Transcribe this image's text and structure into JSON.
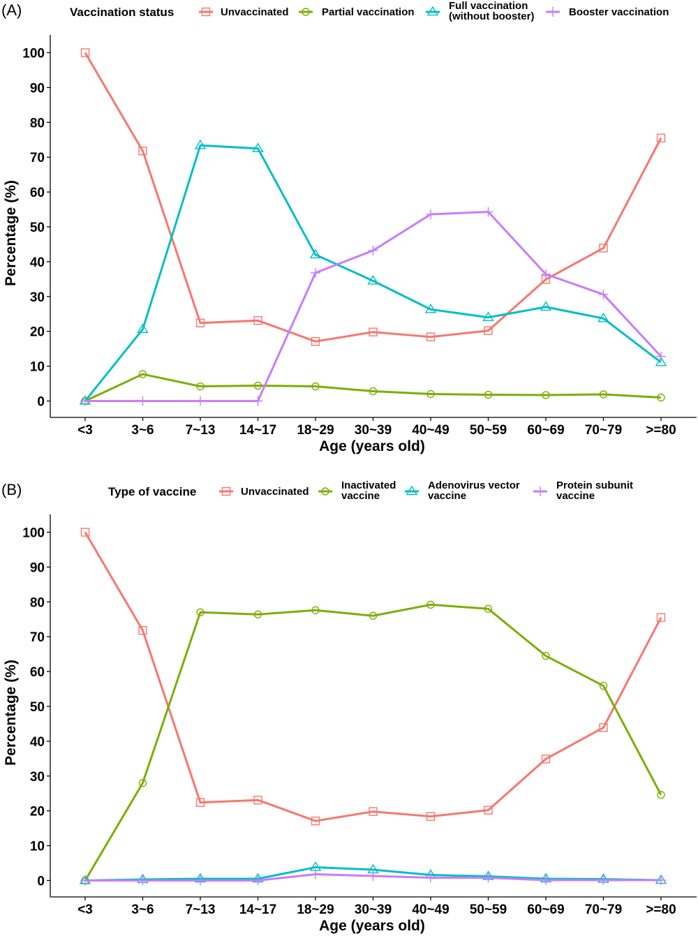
{
  "chart_data": [
    {
      "panel_label": "(A)",
      "type": "line",
      "legend_title": "Vaccination status",
      "legend_position": "top",
      "categories": [
        "<3",
        "3~6",
        "7~13",
        "14~17",
        "18~29",
        "30~39",
        "40~49",
        "50~59",
        "60~69",
        "70~79",
        ">=80"
      ],
      "xlabel": "Age (years old)",
      "ylabel": "Percentage (%)",
      "ylim": [
        0,
        100
      ],
      "yticks": [
        0,
        10,
        20,
        30,
        40,
        50,
        60,
        70,
        80,
        90,
        100
      ],
      "grid": false,
      "series": [
        {
          "name": "Unvaccinated",
          "color": "#F8766D",
          "marker": "square",
          "values": [
            100,
            71.8,
            22.4,
            23.1,
            17.1,
            19.8,
            18.4,
            20.2,
            34.9,
            43.9,
            75.5
          ]
        },
        {
          "name": "Partial vaccination",
          "color": "#7CAE00",
          "marker": "circle",
          "values": [
            0,
            7.7,
            4.2,
            4.4,
            4.2,
            2.8,
            2.0,
            1.8,
            1.7,
            1.9,
            1.0
          ]
        },
        {
          "name": "Full vaccination\n(without booster)",
          "color": "#00BFC4",
          "marker": "triangle",
          "values": [
            0,
            20.6,
            73.4,
            72.5,
            42.0,
            34.5,
            26.3,
            24.0,
            27.0,
            23.7,
            11.1
          ]
        },
        {
          "name": "Booster vaccination",
          "color": "#C77CFF",
          "marker": "plus",
          "values": [
            0,
            0,
            0,
            0,
            36.8,
            43.2,
            53.6,
            54.3,
            36.4,
            30.6,
            12.8
          ]
        }
      ]
    },
    {
      "panel_label": "(B)",
      "type": "line",
      "legend_title": "Type of vaccine",
      "legend_position": "top",
      "categories": [
        "<3",
        "3~6",
        "7~13",
        "14~17",
        "18~29",
        "30~39",
        "40~49",
        "50~59",
        "60~69",
        "70~79",
        ">=80"
      ],
      "xlabel": "Age (years old)",
      "ylabel": "Percentage (%)",
      "ylim": [
        0,
        100
      ],
      "yticks": [
        0,
        10,
        20,
        30,
        40,
        50,
        60,
        70,
        80,
        90,
        100
      ],
      "grid": false,
      "series": [
        {
          "name": "Unvaccinated",
          "color": "#F8766D",
          "marker": "square",
          "values": [
            100,
            71.8,
            22.4,
            23.1,
            17.1,
            19.8,
            18.4,
            20.2,
            34.9,
            43.9,
            75.5
          ]
        },
        {
          "name": "Inactivated\nvaccine",
          "color": "#7CAE00",
          "marker": "circle",
          "values": [
            0,
            28.0,
            77.0,
            76.4,
            77.6,
            76.0,
            79.2,
            78.0,
            64.5,
            55.9,
            24.6
          ]
        },
        {
          "name": "Adenovirus vector\nvaccine",
          "color": "#00BFC4",
          "marker": "triangle",
          "values": [
            0,
            0.3,
            0.5,
            0.5,
            3.8,
            3.1,
            1.6,
            1.2,
            0.5,
            0.4,
            0.1
          ]
        },
        {
          "name": "Protein subunit\nvaccine",
          "color": "#C77CFF",
          "marker": "plus",
          "values": [
            0,
            0,
            0,
            0,
            1.8,
            1.3,
            0.8,
            0.8,
            0.1,
            0.1,
            0.1
          ]
        }
      ]
    }
  ]
}
